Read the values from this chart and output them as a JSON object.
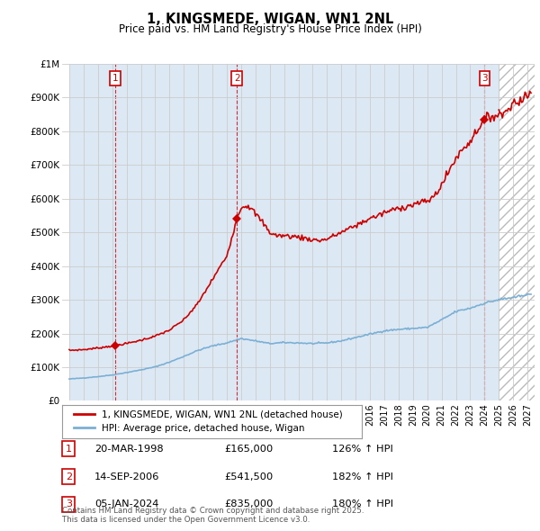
{
  "title": "1, KINGSMEDE, WIGAN, WN1 2NL",
  "subtitle": "Price paid vs. HM Land Registry's House Price Index (HPI)",
  "xlim": [
    1994.5,
    2027.5
  ],
  "ylim": [
    0,
    1000000
  ],
  "yticks": [
    0,
    100000,
    200000,
    300000,
    400000,
    500000,
    600000,
    700000,
    800000,
    900000,
    1000000
  ],
  "ytick_labels": [
    "£0",
    "£100K",
    "£200K",
    "£300K",
    "£400K",
    "£500K",
    "£600K",
    "£700K",
    "£800K",
    "£900K",
    "£1M"
  ],
  "sale_points": [
    {
      "label": "1",
      "date_num": 1998.22,
      "price": 165000
    },
    {
      "label": "2",
      "date_num": 2006.71,
      "price": 541500
    },
    {
      "label": "3",
      "date_num": 2024.01,
      "price": 835000
    }
  ],
  "sale_color": "#cc0000",
  "hpi_color": "#7bafd4",
  "shade_color": "#dce9f5",
  "legend_sale_label": "1, KINGSMEDE, WIGAN, WN1 2NL (detached house)",
  "legend_hpi_label": "HPI: Average price, detached house, Wigan",
  "table_rows": [
    {
      "num": "1",
      "date": "20-MAR-1998",
      "price": "£165,000",
      "hpi": "126% ↑ HPI"
    },
    {
      "num": "2",
      "date": "14-SEP-2006",
      "price": "£541,500",
      "hpi": "182% ↑ HPI"
    },
    {
      "num": "3",
      "date": "05-JAN-2024",
      "price": "£835,000",
      "hpi": "180% ↑ HPI"
    }
  ],
  "footnote": "Contains HM Land Registry data © Crown copyright and database right 2025.\nThis data is licensed under the Open Government Licence v3.0.",
  "bg_color": "#ffffff",
  "grid_color": "#cccccc"
}
